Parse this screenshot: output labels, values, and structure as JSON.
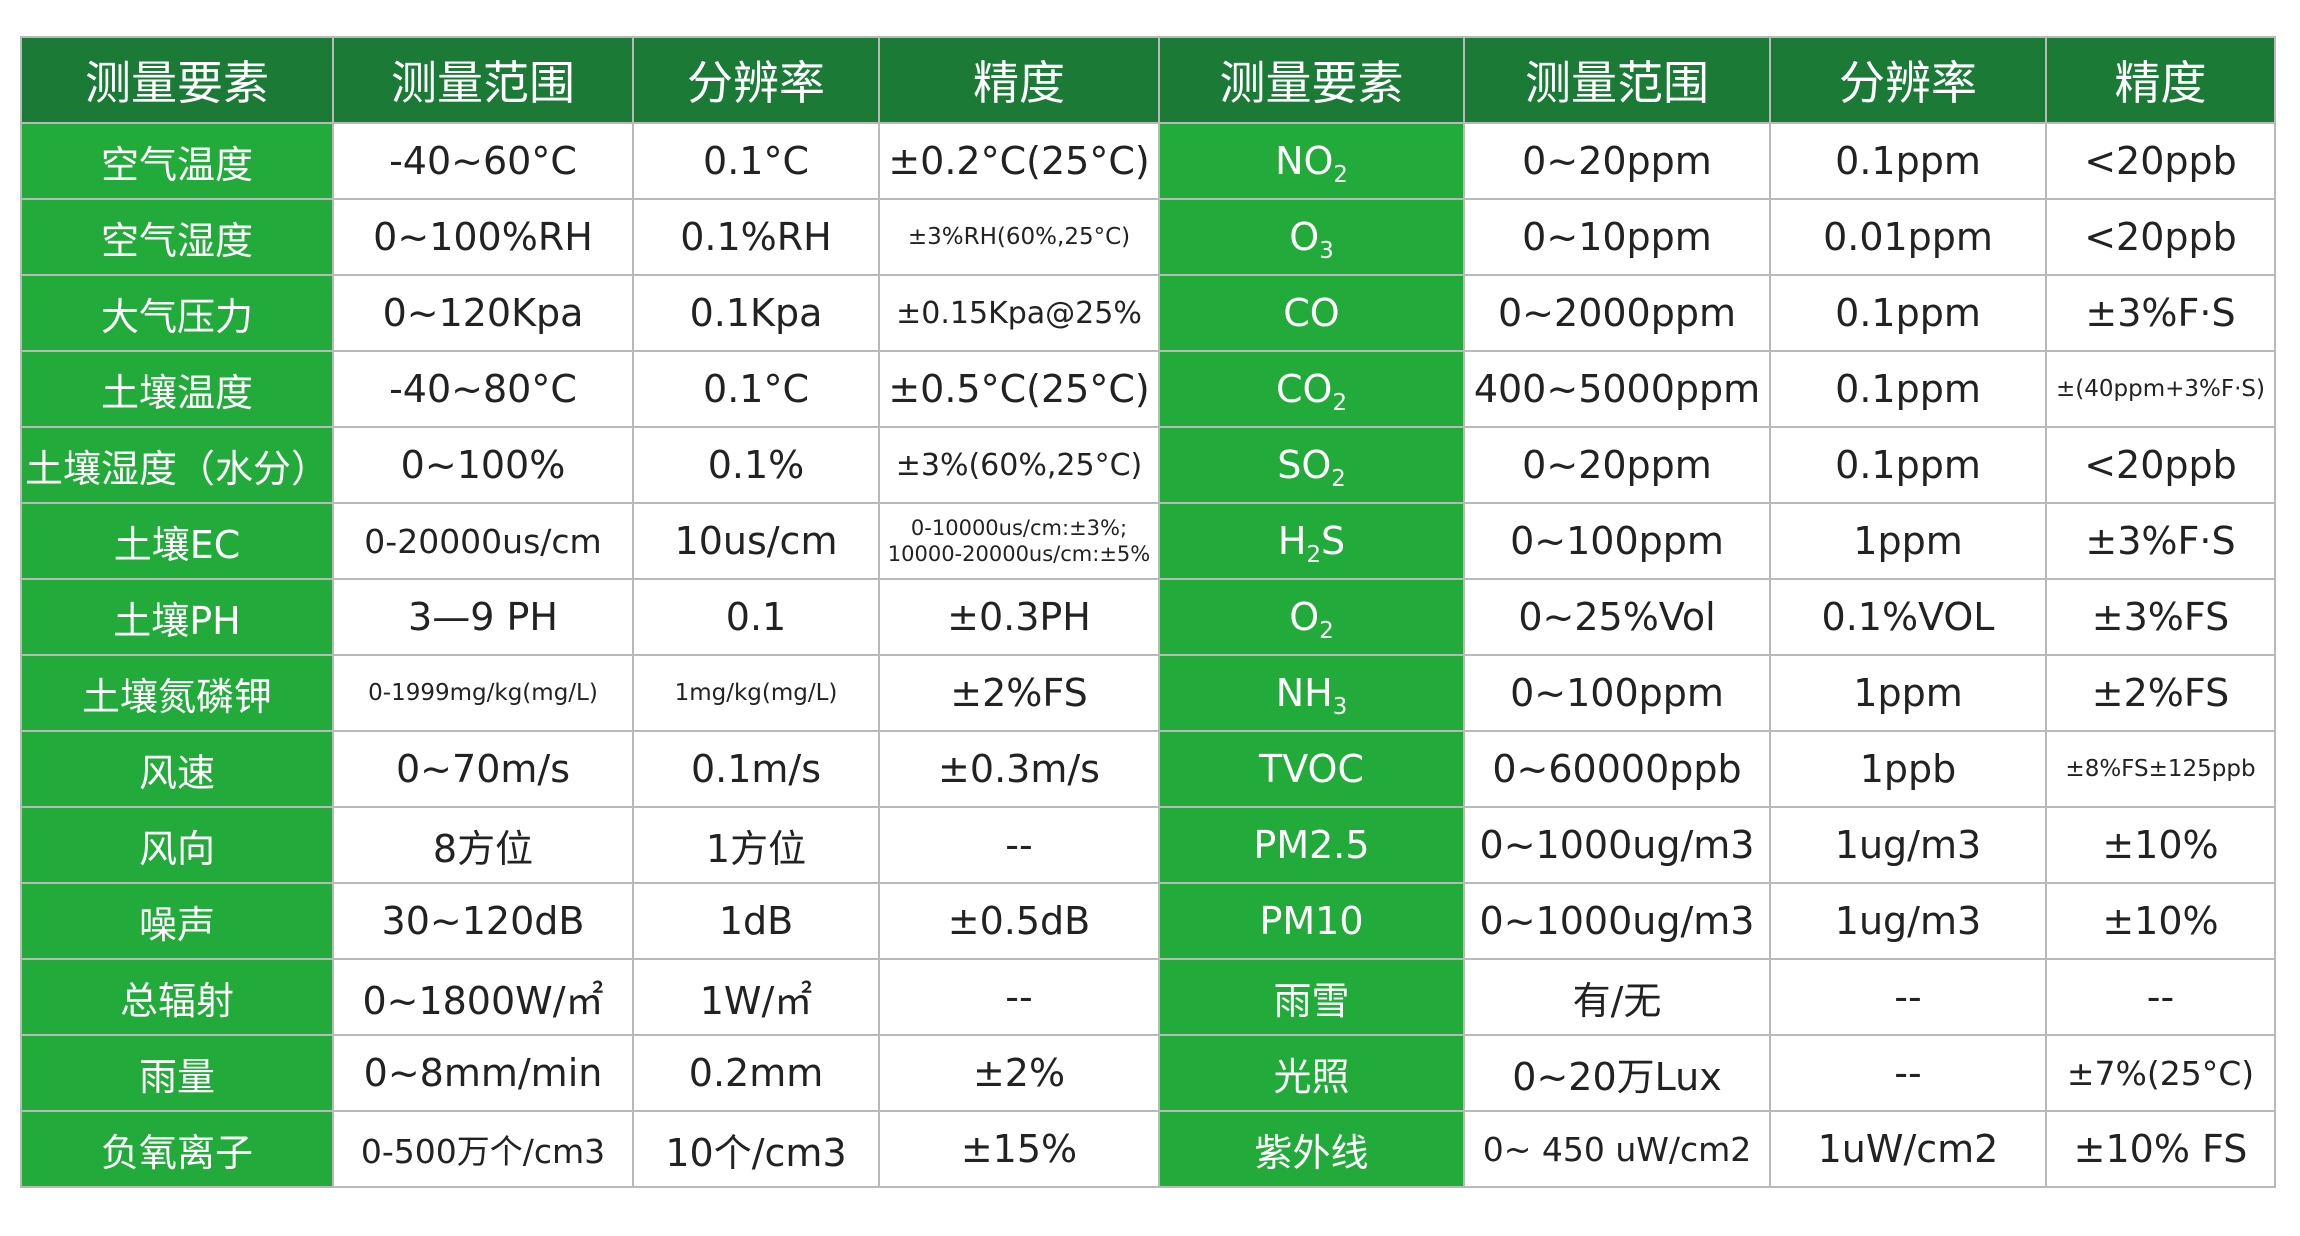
{
  "headers": [
    "测量要素",
    "测量范围",
    "分辨率",
    "精度",
    "测量要素",
    "测量范围",
    "分辨率",
    "精度"
  ],
  "rows": [
    {
      "left": {
        "param": "空气温度",
        "range": "-40~60°C",
        "resolution": "0.1°C",
        "accuracy": "±0.2°C(25°C)"
      },
      "right": {
        "param": "NO",
        "param_sub": "2",
        "range": "0~20ppm",
        "resolution": "0.1ppm",
        "accuracy": "<20ppb"
      }
    },
    {
      "left": {
        "param": "空气湿度",
        "range": "0~100%RH",
        "resolution": "0.1%RH",
        "accuracy": "±3%RH(60%,25°C)"
      },
      "right": {
        "param": "O",
        "param_sub": "3",
        "range": "0~10ppm",
        "resolution": "0.01ppm",
        "accuracy": "<20ppb"
      }
    },
    {
      "left": {
        "param": "大气压力",
        "range": "0~120Kpa",
        "resolution": "0.1Kpa",
        "accuracy": "±0.15Kpa@25%"
      },
      "right": {
        "param": "CO",
        "param_sub": "",
        "range": "0~2000ppm",
        "resolution": "0.1ppm",
        "accuracy": "±3%F·S"
      }
    },
    {
      "left": {
        "param": "土壤温度",
        "range": "-40~80°C",
        "resolution": "0.1°C",
        "accuracy": "±0.5°C(25°C)"
      },
      "right": {
        "param": "CO",
        "param_sub": "2",
        "range": "400~5000ppm",
        "resolution": "0.1ppm",
        "accuracy": "±(40ppm+3%F·S)"
      }
    },
    {
      "left": {
        "param": "土壤湿度（水分）",
        "range": "0~100%",
        "resolution": "0.1%",
        "accuracy": "±3%(60%,25°C)"
      },
      "right": {
        "param": "SO",
        "param_sub": "2",
        "range": "0~20ppm",
        "resolution": "0.1ppm",
        "accuracy": "<20ppb"
      }
    },
    {
      "left": {
        "param": "土壤EC",
        "range": "0-20000us/cm",
        "resolution": "10us/cm",
        "accuracy_line1": "0-10000us/cm:±3%;",
        "accuracy_line2": "10000-20000us/cm:±5%"
      },
      "right": {
        "param": "H",
        "param_sub": "2",
        "param_tail": "S",
        "range": "0~100ppm",
        "resolution": "1ppm",
        "accuracy": "±3%F·S"
      }
    },
    {
      "left": {
        "param": "土壤PH",
        "range": "3—9 PH",
        "resolution": "0.1",
        "accuracy": "±0.3PH"
      },
      "right": {
        "param": "O",
        "param_sub": "2",
        "range": "0~25%Vol",
        "resolution": "0.1%VOL",
        "accuracy": "±3%FS"
      }
    },
    {
      "left": {
        "param": "土壤氮磷钾",
        "range": "0-1999mg/kg(mg/L)",
        "resolution": "1mg/kg(mg/L)",
        "accuracy": "±2%FS"
      },
      "right": {
        "param": "NH",
        "param_sub": "3",
        "range": "0~100ppm",
        "resolution": "1ppm",
        "accuracy": "±2%FS"
      }
    },
    {
      "left": {
        "param": "风速",
        "range": "0~70m/s",
        "resolution": "0.1m/s",
        "accuracy": "±0.3m/s"
      },
      "right": {
        "param": "TVOC",
        "param_sub": "",
        "range": "0~60000ppb",
        "resolution": "1ppb",
        "accuracy": "±8%FS±125ppb"
      }
    },
    {
      "left": {
        "param": "风向",
        "range": "8方位",
        "resolution": "1方位",
        "accuracy": "--"
      },
      "right": {
        "param": "PM2.5",
        "param_sub": "",
        "range": "0~1000ug/m3",
        "resolution": "1ug/m3",
        "accuracy": "±10%"
      }
    },
    {
      "left": {
        "param": "噪声",
        "range": "30~120dB",
        "resolution": "1dB",
        "accuracy": "±0.5dB"
      },
      "right": {
        "param": "PM10",
        "param_sub": "",
        "range": "0~1000ug/m3",
        "resolution": "1ug/m3",
        "accuracy": "±10%"
      }
    },
    {
      "left": {
        "param": "总辐射",
        "range": "0~1800W/㎡",
        "resolution": "1W/㎡",
        "accuracy": "--"
      },
      "right": {
        "param": "雨雪",
        "param_sub": "",
        "range": "有/无",
        "resolution": "--",
        "accuracy": "--"
      }
    },
    {
      "left": {
        "param": "雨量",
        "range": "0~8mm/min",
        "resolution": "0.2mm",
        "accuracy": "±2%"
      },
      "right": {
        "param": "光照",
        "param_sub": "",
        "range": "0~20万Lux",
        "resolution": "--",
        "accuracy": "±7%(25°C)"
      }
    },
    {
      "left": {
        "param": "负氧离子",
        "range": "0-500万个/cm3",
        "resolution": "10个/cm3",
        "accuracy": "±15%"
      },
      "right": {
        "param": "紫外线",
        "param_sub": "",
        "range": "0~ 450 uW/cm2",
        "resolution": "1uW/cm2",
        "accuracy": "±10% FS"
      }
    }
  ],
  "colors": {
    "header_bg": "#1a7a36",
    "param_bg": "#22aa3a",
    "border": "#b9b9b9",
    "text": "#222222"
  }
}
